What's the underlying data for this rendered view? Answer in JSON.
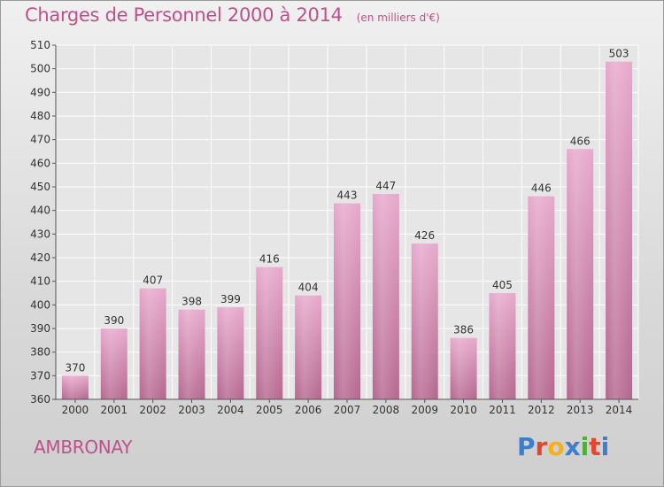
{
  "chart_data": {
    "type": "bar",
    "title": "Charges de Personnel 2000 à 2014",
    "subtitle": "(en milliers d'€)",
    "categories": [
      "2000",
      "2001",
      "2002",
      "2003",
      "2004",
      "2005",
      "2006",
      "2007",
      "2008",
      "2009",
      "2010",
      "2011",
      "2012",
      "2013",
      "2014"
    ],
    "values": [
      370,
      390,
      407,
      398,
      399,
      416,
      404,
      443,
      447,
      426,
      386,
      405,
      446,
      466,
      503
    ],
    "ylim": [
      360,
      510
    ],
    "yticks": [
      360,
      370,
      380,
      390,
      400,
      410,
      420,
      430,
      440,
      450,
      460,
      470,
      480,
      490,
      500,
      510
    ],
    "grid": true,
    "bar_color": "#d98cb8"
  },
  "commune": "AMBRONAY",
  "logo": {
    "letters": [
      "P",
      "r",
      "o",
      "x",
      "i",
      "t",
      "i"
    ],
    "colors": [
      "#3a7fd0",
      "#e8432c",
      "#f3b11c",
      "#3a7fd0",
      "#4caf3a",
      "#e8432c",
      "#3a7fd0"
    ]
  }
}
